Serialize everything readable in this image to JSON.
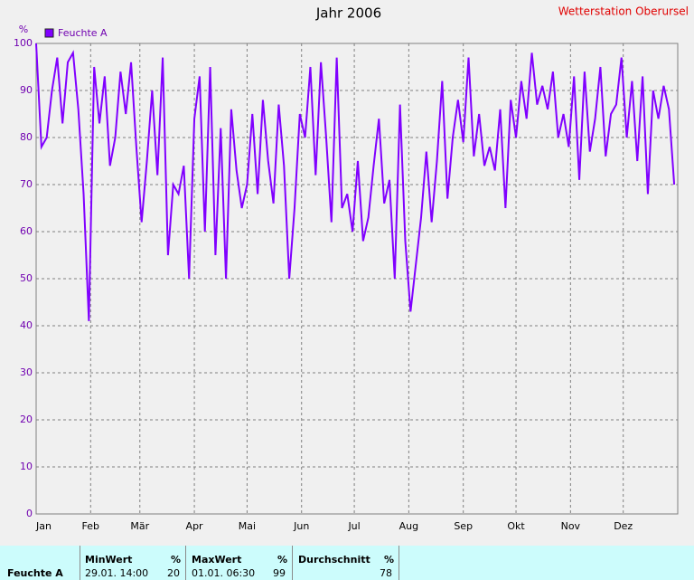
{
  "chart_data": {
    "type": "line",
    "title": "Jahr 2006",
    "station": "Wetterstation Oberursel",
    "ylabel": "%",
    "xlim": [
      0,
      365
    ],
    "xticks": [
      {
        "value": 0,
        "label": "Jan"
      },
      {
        "value": 31,
        "label": "Feb"
      },
      {
        "value": 59,
        "label": "Mär"
      },
      {
        "value": 90,
        "label": "Apr"
      },
      {
        "value": 120,
        "label": "Mai"
      },
      {
        "value": 151,
        "label": "Jun"
      },
      {
        "value": 181,
        "label": "Jul"
      },
      {
        "value": 212,
        "label": "Aug"
      },
      {
        "value": 243,
        "label": "Sep"
      },
      {
        "value": 273,
        "label": "Okt"
      },
      {
        "value": 304,
        "label": "Nov"
      },
      {
        "value": 334,
        "label": "Dez"
      }
    ],
    "ylim": [
      0,
      100
    ],
    "yticks": [
      0,
      10,
      20,
      30,
      40,
      50,
      60,
      70,
      80,
      90,
      100
    ],
    "grid": true,
    "x": [
      0,
      3,
      6,
      9,
      12,
      15,
      18,
      21,
      24,
      27,
      30,
      33,
      36,
      39,
      42,
      45,
      48,
      51,
      54,
      57,
      60,
      63,
      66,
      69,
      72,
      75,
      78,
      81,
      84,
      87,
      90,
      93,
      96,
      99,
      102,
      105,
      108,
      111,
      114,
      117,
      120,
      123,
      126,
      129,
      132,
      135,
      138,
      141,
      144,
      147,
      150,
      153,
      156,
      159,
      162,
      165,
      168,
      171,
      174,
      177,
      180,
      183,
      186,
      189,
      192,
      195,
      198,
      201,
      204,
      207,
      210,
      213,
      216,
      219,
      222,
      225,
      228,
      231,
      234,
      237,
      240,
      243,
      246,
      249,
      252,
      255,
      258,
      261,
      264,
      267,
      270,
      273,
      276,
      279,
      282,
      285,
      288,
      291,
      294,
      297,
      300,
      303,
      306,
      309,
      312,
      315,
      318,
      321,
      324,
      327,
      330,
      333,
      336,
      339,
      342,
      345,
      348,
      351,
      354,
      357,
      360,
      363
    ],
    "series": [
      {
        "name": "Feuchte A",
        "color": "#8000ff",
        "values": [
          100,
          78,
          80,
          90,
          97,
          83,
          96,
          98,
          86,
          68,
          41,
          95,
          83,
          93,
          74,
          80,
          94,
          85,
          96,
          78,
          62,
          75,
          90,
          72,
          97,
          55,
          70,
          68,
          74,
          50,
          84,
          93,
          60,
          95,
          55,
          82,
          50,
          86,
          73,
          65,
          70,
          85,
          68,
          88,
          75,
          66,
          87,
          74,
          50,
          65,
          85,
          80,
          95,
          72,
          96,
          80,
          62,
          97,
          65,
          68,
          60,
          75,
          58,
          63,
          74,
          84,
          66,
          71,
          50,
          87,
          58,
          43,
          53,
          63,
          77,
          62,
          75,
          92,
          67,
          80,
          88,
          79,
          97,
          76,
          85,
          74,
          78,
          73,
          86,
          65,
          88,
          80,
          92,
          84,
          98,
          87,
          91,
          86,
          94,
          80,
          85,
          78,
          93,
          71,
          94,
          77,
          84,
          95,
          76,
          85,
          87,
          97,
          80,
          92,
          75,
          93,
          68,
          90,
          84,
          91,
          86,
          70
        ]
      }
    ]
  },
  "footer": {
    "series_label": "Feuchte A",
    "min": {
      "title": "MinWert",
      "unit": "%",
      "time": "29.01.  14:00",
      "value": 20
    },
    "max": {
      "title": "MaxWert",
      "unit": "%",
      "time": "01.01.  06:30",
      "value": 99
    },
    "avg": {
      "title": "Durchschnitt",
      "unit": "%",
      "value": 78
    }
  }
}
